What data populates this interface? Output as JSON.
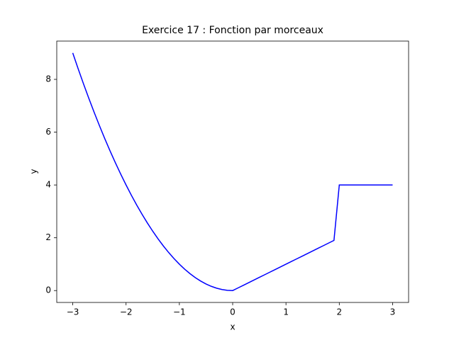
{
  "chart_data": {
    "type": "line",
    "title": "Exercice 17 : Fonction par morceaux",
    "x_label": "x",
    "y_label": "y",
    "x": [
      -3,
      -2.9,
      -2.8,
      -2.7,
      -2.6,
      -2.5,
      -2.4,
      -2.3,
      -2.2,
      -2.1,
      -2,
      -1.9,
      -1.8,
      -1.7,
      -1.6,
      -1.5,
      -1.4,
      -1.3,
      -1.2,
      -1.1,
      -1,
      -0.9,
      -0.8,
      -0.7,
      -0.6,
      -0.5,
      -0.4,
      -0.3,
      -0.2,
      -0.1,
      0,
      0.1,
      0.2,
      0.3,
      0.4,
      0.5,
      0.6,
      0.7,
      0.8,
      0.9,
      1,
      1.1,
      1.2,
      1.3,
      1.4,
      1.5,
      1.6,
      1.7,
      1.8,
      1.9,
      2,
      2.1,
      2.2,
      2.3,
      2.4,
      2.5,
      2.6,
      2.7,
      2.8,
      2.9,
      3
    ],
    "series": [
      {
        "color": "#0000ff",
        "values": [
          9,
          8.41,
          7.84,
          7.29,
          6.76,
          6.25,
          5.76,
          5.29,
          4.84,
          4.41,
          4,
          3.61,
          3.24,
          2.89,
          2.56,
          2.25,
          1.96,
          1.69,
          1.44,
          1.21,
          1,
          0.81,
          0.64,
          0.49,
          0.36,
          0.25,
          0.16,
          0.09,
          0.04,
          0.01,
          0,
          0.1,
          0.2,
          0.3,
          0.4,
          0.5,
          0.6,
          0.7,
          0.8,
          0.9,
          1,
          1.1,
          1.2,
          1.3,
          1.4,
          1.5,
          1.6,
          1.7,
          1.8,
          1.9,
          4,
          4,
          4,
          4,
          4,
          4,
          4,
          4,
          4,
          4,
          4
        ]
      }
    ],
    "xlim": [
      -3.3,
      3.3
    ],
    "ylim": [
      -0.45,
      9.45
    ],
    "xticks": [
      {
        "value": -3,
        "label": "−3"
      },
      {
        "value": -2,
        "label": "−2"
      },
      {
        "value": -1,
        "label": "−1"
      },
      0,
      1,
      2,
      3
    ],
    "yticks": [
      0,
      2,
      4,
      6,
      8
    ]
  }
}
